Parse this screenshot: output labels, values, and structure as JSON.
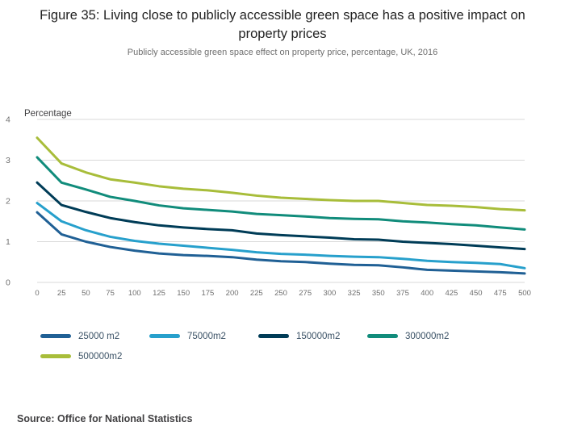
{
  "title": "Figure 35: Living close to publicly accessible green space has a positive impact on property prices",
  "subtitle": "Publicly accessible green space effect on property price, percentage, UK, 2016",
  "source": "Source: Office for National Statistics",
  "chart_data": {
    "type": "line",
    "title": "Figure 35: Living close to publicly accessible green space has a positive impact on property prices",
    "subtitle": "Publicly accessible green space effect on property price, percentage, UK, 2016",
    "xlabel": "",
    "ylabel": "Percentage",
    "xlim": [
      0,
      500
    ],
    "ylim": [
      0,
      4
    ],
    "yticks": [
      0,
      1,
      2,
      3,
      4
    ],
    "grid": "horizontal",
    "legend_position": "bottom",
    "x": [
      0,
      25,
      50,
      75,
      100,
      125,
      150,
      175,
      200,
      225,
      250,
      275,
      300,
      325,
      350,
      375,
      400,
      425,
      450,
      475,
      500
    ],
    "series": [
      {
        "name": "25000 m2",
        "color": "#206095",
        "values": [
          1.72,
          1.18,
          1.0,
          0.87,
          0.78,
          0.71,
          0.67,
          0.65,
          0.62,
          0.56,
          0.52,
          0.5,
          0.46,
          0.43,
          0.42,
          0.37,
          0.31,
          0.29,
          0.27,
          0.25,
          0.22
        ]
      },
      {
        "name": "75000m2",
        "color": "#27A0CC",
        "values": [
          1.95,
          1.5,
          1.28,
          1.12,
          1.02,
          0.95,
          0.9,
          0.85,
          0.8,
          0.74,
          0.7,
          0.68,
          0.65,
          0.63,
          0.62,
          0.58,
          0.53,
          0.5,
          0.48,
          0.45,
          0.35
        ]
      },
      {
        "name": "150000m2",
        "color": "#003C57",
        "values": [
          2.45,
          1.9,
          1.73,
          1.58,
          1.48,
          1.4,
          1.35,
          1.31,
          1.28,
          1.2,
          1.16,
          1.13,
          1.1,
          1.06,
          1.05,
          1.0,
          0.97,
          0.94,
          0.9,
          0.86,
          0.82
        ]
      },
      {
        "name": "300000m2",
        "color": "#118C7B",
        "values": [
          3.07,
          2.45,
          2.28,
          2.1,
          2.0,
          1.89,
          1.82,
          1.78,
          1.74,
          1.68,
          1.65,
          1.62,
          1.58,
          1.56,
          1.55,
          1.5,
          1.47,
          1.43,
          1.4,
          1.35,
          1.3
        ]
      },
      {
        "name": "500000m2",
        "color": "#A8BD3A",
        "values": [
          3.55,
          2.92,
          2.7,
          2.53,
          2.45,
          2.36,
          2.3,
          2.26,
          2.2,
          2.13,
          2.08,
          2.05,
          2.02,
          2.0,
          2.0,
          1.95,
          1.9,
          1.88,
          1.85,
          1.8,
          1.77
        ]
      }
    ]
  }
}
